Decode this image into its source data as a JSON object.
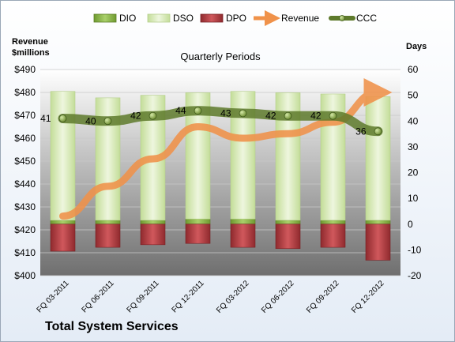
{
  "company": "Total System Services",
  "chart_data": {
    "type": "bar",
    "title": "Quarterly Periods",
    "left_axis": {
      "label_line1": "Revenue",
      "label_line2": "$millions",
      "ylim": [
        400,
        490
      ],
      "ticks": [
        "$400",
        "$410",
        "$420",
        "$430",
        "$440",
        "$450",
        "$460",
        "$470",
        "$480",
        "$490"
      ]
    },
    "right_axis": {
      "label": "Days",
      "ylim": [
        -20,
        60
      ],
      "ticks": [
        "-20",
        "-10",
        "0",
        "10",
        "20",
        "30",
        "40",
        "50",
        "60"
      ]
    },
    "categories": [
      "FQ 03-2011",
      "FQ 06-2011",
      "FQ 09-2011",
      "FQ 12-2011",
      "FQ 03-2012",
      "FQ 06-2012",
      "FQ 09-2012",
      "FQ 12-2012"
    ],
    "legend_position": "top",
    "series": [
      {
        "name": "DIO",
        "axis": "right",
        "kind": "stacked-bar",
        "color": "#8db84a",
        "values": [
          1.5,
          1.5,
          1.5,
          2,
          2,
          1.5,
          1.5,
          1.5
        ]
      },
      {
        "name": "DSO",
        "axis": "right",
        "kind": "stacked-bar",
        "color": "#d8e9b8",
        "values": [
          50,
          47.5,
          48.5,
          49,
          49.5,
          49.5,
          49,
          48
        ]
      },
      {
        "name": "DPO",
        "axis": "right",
        "kind": "negative-bar",
        "color": "#b83a3e",
        "values": [
          -10.5,
          -9,
          -8,
          -7.5,
          -9,
          -9.5,
          -9,
          -14
        ]
      },
      {
        "name": "Revenue",
        "axis": "left",
        "kind": "arrow-line",
        "color": "#f0924a",
        "values": [
          426,
          439,
          451,
          465,
          460,
          462,
          467,
          480
        ]
      },
      {
        "name": "CCC",
        "axis": "right",
        "kind": "line-markers",
        "color": "#5e7a2c",
        "values": [
          41,
          40,
          42,
          44,
          43,
          42,
          42,
          36
        ],
        "labels": [
          "41",
          "40",
          "42",
          "44",
          "43",
          "42",
          "42",
          "36"
        ]
      }
    ]
  }
}
